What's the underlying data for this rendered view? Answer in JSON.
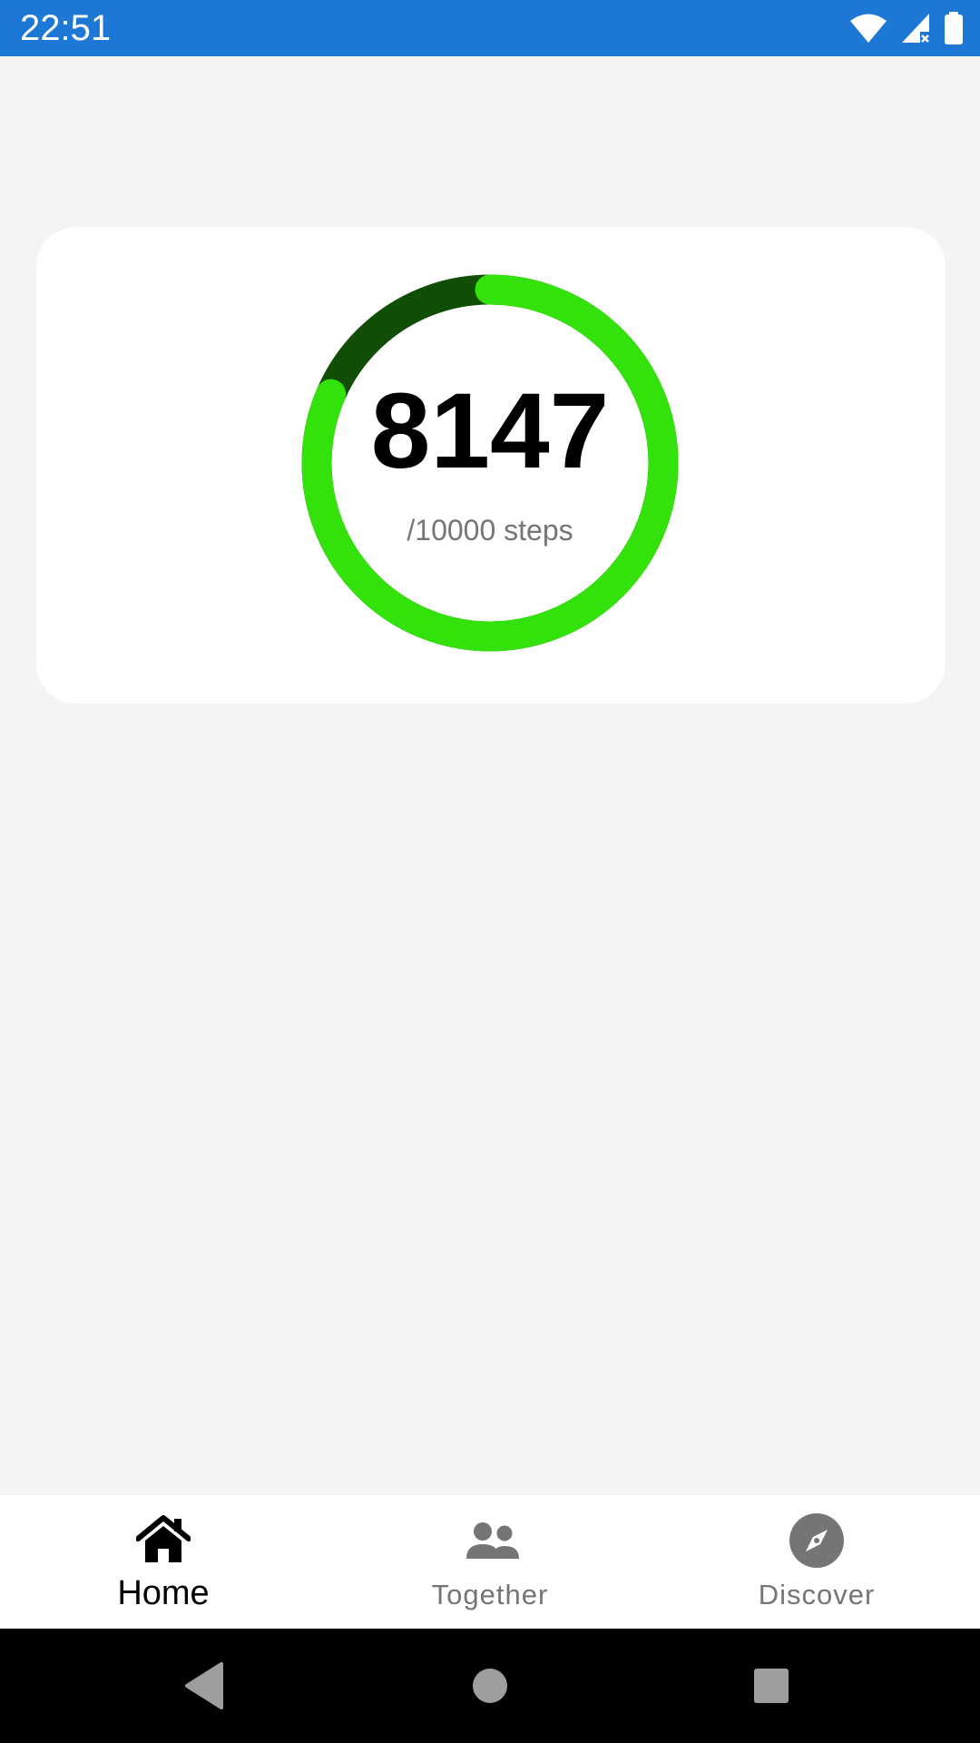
{
  "status_bar": {
    "time": "22:51",
    "background": "#1c78d4",
    "icons": [
      "wifi-icon",
      "cell-signal-icon",
      "battery-icon"
    ]
  },
  "step_card": {
    "count": "8147",
    "goal_label": "/10000 steps",
    "progress": 0.8147,
    "ring_color": "#33e20b",
    "ring_track_color": "#0f4e04"
  },
  "bottom_nav": {
    "items": [
      {
        "label": "Home",
        "icon": "home-icon",
        "active": true
      },
      {
        "label": "Together",
        "icon": "people-icon",
        "active": false
      },
      {
        "label": "Discover",
        "icon": "compass-icon",
        "active": false
      }
    ],
    "active_color": "#000000",
    "inactive_color": "#757575"
  },
  "system_nav": {
    "buttons": [
      "back-icon",
      "home-circle-icon",
      "recents-icon"
    ]
  }
}
